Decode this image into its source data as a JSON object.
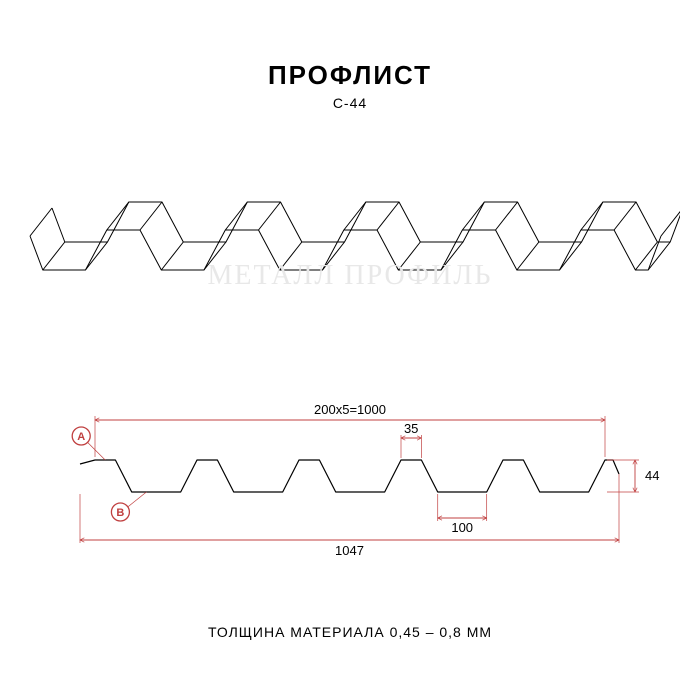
{
  "title": "ПРОФЛИСТ",
  "subtitle": "С-44",
  "watermark": "МЕТАЛЛ ПРОФИЛЬ",
  "thickness_label": "ТОЛЩИНА МАТЕРИАЛА 0,45 – 0,8 ММ",
  "perspective": {
    "type": "isometric-profile",
    "stroke": "#000000",
    "stroke_width": 1,
    "ribs": 5
  },
  "cross_section": {
    "type": "profile-dimensions",
    "stroke": "#000000",
    "stroke_width": 1.2,
    "dim_color": "#c04040",
    "marker_a_color": "#c04040",
    "marker_b_color": "#c04040",
    "marker_fill": "#ffffff",
    "dim_fontsize": 13,
    "dimensions": {
      "top_pitch": "200x5=1000",
      "top_width": "35",
      "height": "44",
      "bottom_valley": "100",
      "total_width": "1047"
    },
    "markers": {
      "a": "A",
      "b": "B"
    }
  }
}
